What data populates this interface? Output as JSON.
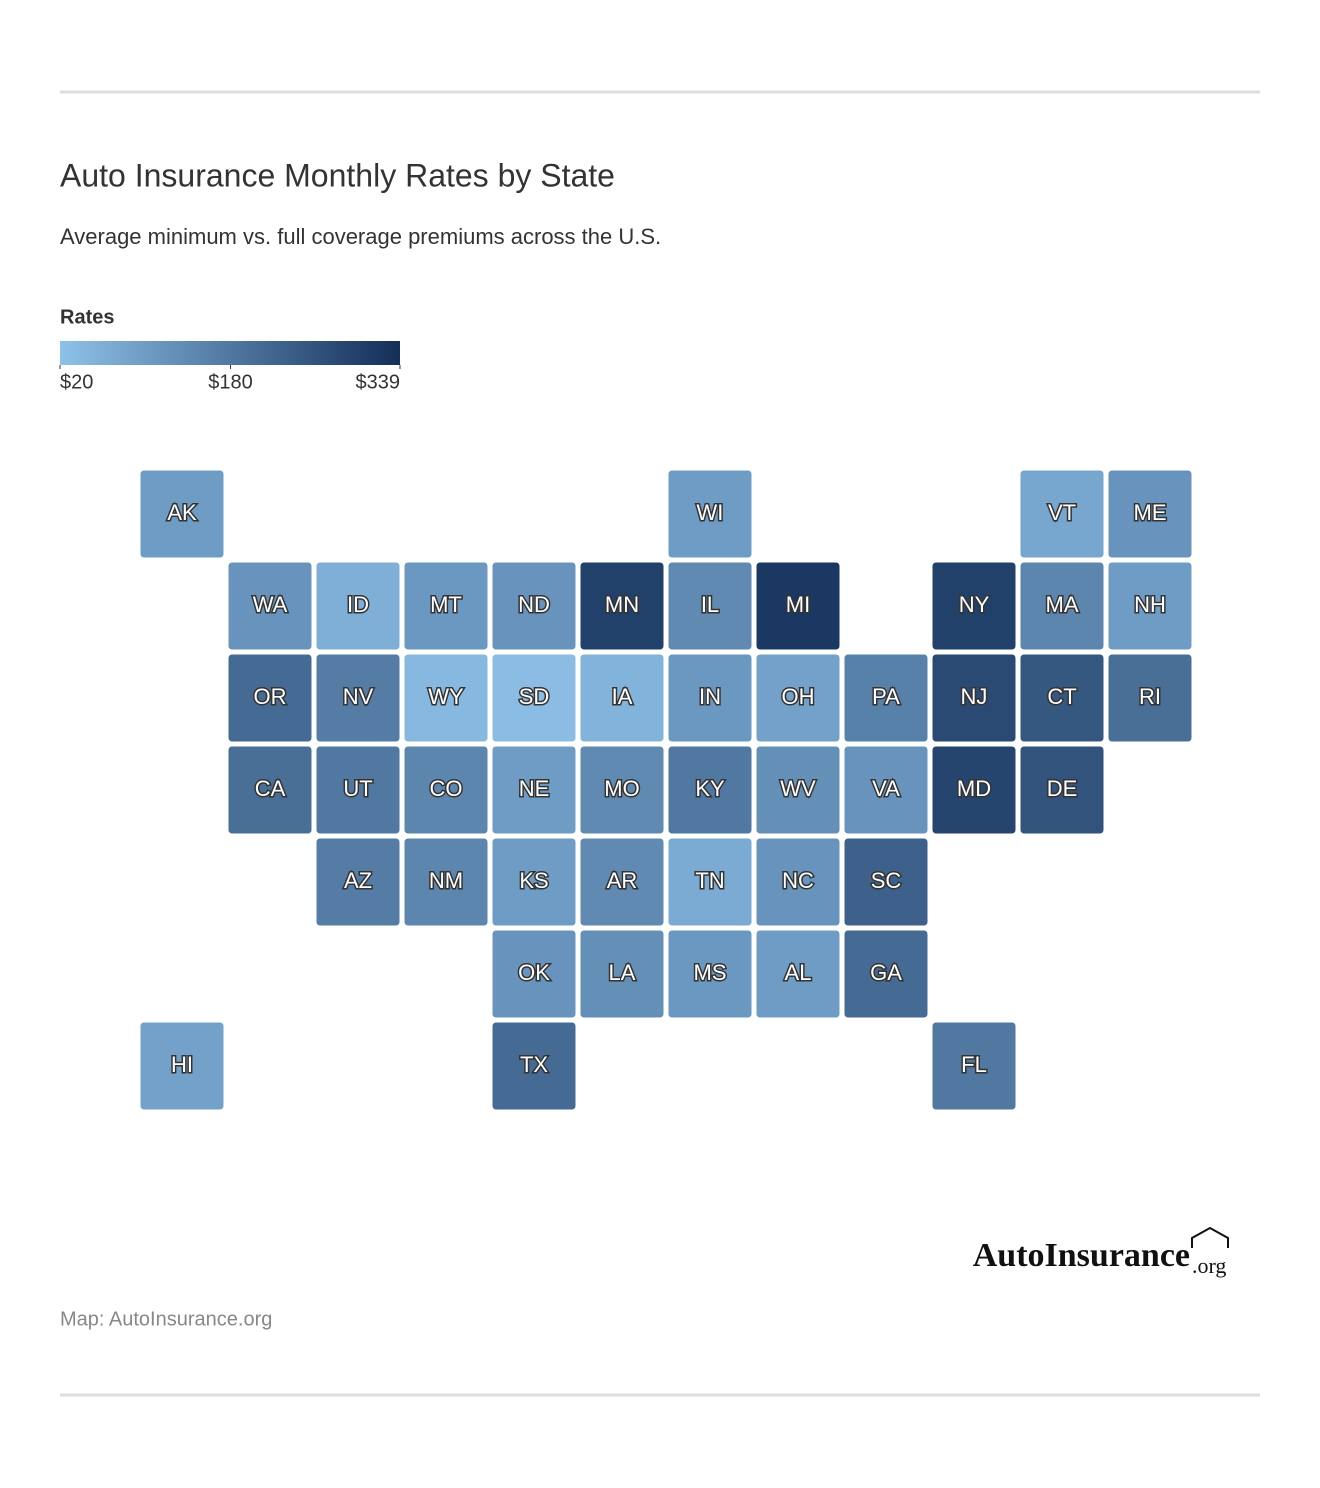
{
  "chart_data": {
    "type": "choropleth",
    "title": "Auto Insurance Monthly Rates by State",
    "subtitle": "Average minimum vs. full coverage premiums across the U.S.",
    "legend_title": "Rates",
    "color_scale": [
      "#8ec1e9",
      "#132f58"
    ],
    "clim": [
      20,
      339
    ],
    "cticks": [
      {
        "value": 20,
        "label": "$20"
      },
      {
        "value": 180,
        "label": "$180"
      },
      {
        "value": 339,
        "label": "$339"
      }
    ],
    "states": [
      {
        "label": "AK",
        "value": 100
      },
      {
        "label": "WI",
        "value": 100
      },
      {
        "label": "VT",
        "value": 80
      },
      {
        "label": "ME",
        "value": 120
      },
      {
        "label": "WA",
        "value": 120
      },
      {
        "label": "ID",
        "value": 60
      },
      {
        "label": "MT",
        "value": 110
      },
      {
        "label": "ND",
        "value": 120
      },
      {
        "label": "MN",
        "value": 300
      },
      {
        "label": "IL",
        "value": 140
      },
      {
        "label": "MI",
        "value": 320
      },
      {
        "label": "NY",
        "value": 300
      },
      {
        "label": "MA",
        "value": 150
      },
      {
        "label": "NH",
        "value": 100
      },
      {
        "label": "OR",
        "value": 210
      },
      {
        "label": "NV",
        "value": 170
      },
      {
        "label": "WY",
        "value": 40
      },
      {
        "label": "SD",
        "value": 30
      },
      {
        "label": "IA",
        "value": 50
      },
      {
        "label": "IN",
        "value": 110
      },
      {
        "label": "OH",
        "value": 90
      },
      {
        "label": "PA",
        "value": 160
      },
      {
        "label": "NJ",
        "value": 280
      },
      {
        "label": "CT",
        "value": 250
      },
      {
        "label": "RI",
        "value": 200
      },
      {
        "label": "CA",
        "value": 200
      },
      {
        "label": "UT",
        "value": 180
      },
      {
        "label": "CO",
        "value": 150
      },
      {
        "label": "NE",
        "value": 100
      },
      {
        "label": "MO",
        "value": 140
      },
      {
        "label": "KY",
        "value": 180
      },
      {
        "label": "WV",
        "value": 130
      },
      {
        "label": "VA",
        "value": 120
      },
      {
        "label": "MD",
        "value": 290
      },
      {
        "label": "DE",
        "value": 260
      },
      {
        "label": "AZ",
        "value": 170
      },
      {
        "label": "NM",
        "value": 150
      },
      {
        "label": "KS",
        "value": 100
      },
      {
        "label": "AR",
        "value": 140
      },
      {
        "label": "TN",
        "value": 70
      },
      {
        "label": "NC",
        "value": 120
      },
      {
        "label": "SC",
        "value": 230
      },
      {
        "label": "OK",
        "value": 120
      },
      {
        "label": "LA",
        "value": 130
      },
      {
        "label": "MS",
        "value": 110
      },
      {
        "label": "AL",
        "value": 100
      },
      {
        "label": "GA",
        "value": 210
      },
      {
        "label": "HI",
        "value": 90
      },
      {
        "label": "TX",
        "value": 210
      },
      {
        "label": "FL",
        "value": 180
      }
    ],
    "logo": {
      "name": "AutoInsurance",
      "suffix": ".org"
    },
    "source": "Map: AutoInsurance.org"
  }
}
